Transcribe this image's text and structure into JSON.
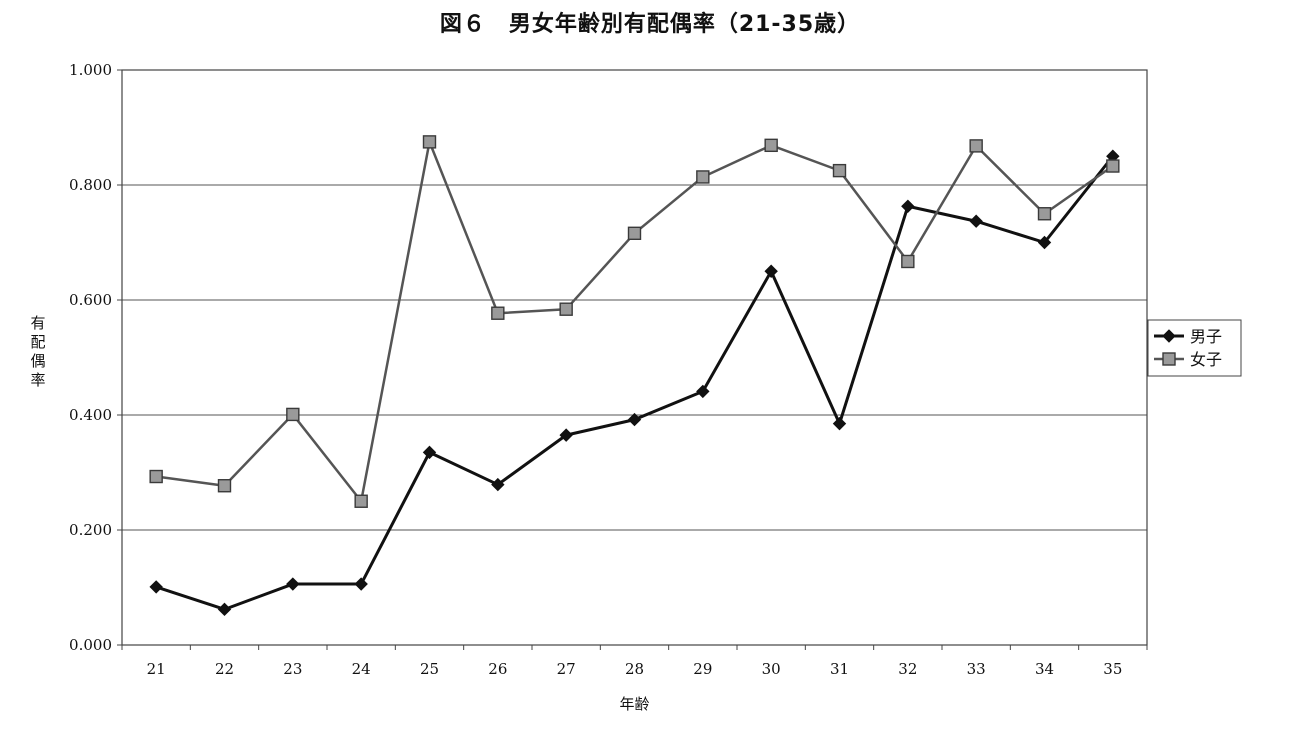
{
  "chart_data": {
    "type": "line",
    "title": "図６　男女年齢別有配偶率（21-35歳）",
    "xlabel": "年齢",
    "ylabel": "有配偶率",
    "categories": [
      "21",
      "22",
      "23",
      "24",
      "25",
      "26",
      "27",
      "28",
      "29",
      "30",
      "31",
      "32",
      "33",
      "34",
      "35"
    ],
    "ylim": [
      0,
      1
    ],
    "yticks": [
      "0.000",
      "0.200",
      "0.400",
      "0.600",
      "0.800",
      "1.000"
    ],
    "grid": true,
    "legend_position": "right",
    "series": [
      {
        "name": "男子",
        "marker": "diamond",
        "color": "#111111",
        "values": [
          0.101,
          0.062,
          0.106,
          0.106,
          0.335,
          0.279,
          0.365,
          0.392,
          0.441,
          0.65,
          0.385,
          0.763,
          0.737,
          0.7,
          0.85
        ]
      },
      {
        "name": "女子",
        "marker": "square",
        "color": "#555555",
        "values": [
          0.293,
          0.277,
          0.401,
          0.25,
          0.875,
          0.577,
          0.584,
          0.716,
          0.814,
          0.869,
          0.825,
          0.667,
          0.868,
          0.75,
          0.833
        ]
      }
    ]
  }
}
